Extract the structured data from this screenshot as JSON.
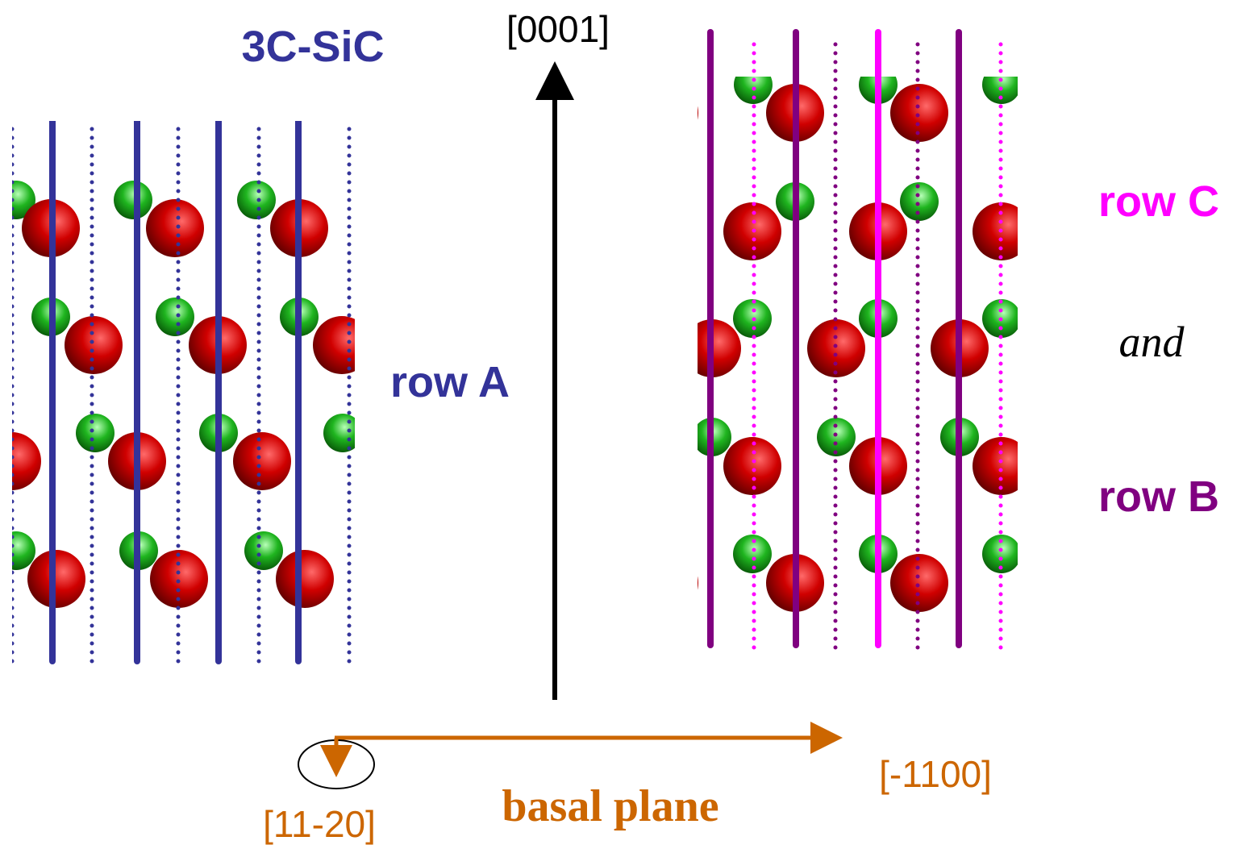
{
  "labels": {
    "title": "3C-SiC",
    "axis_up": "[0001]",
    "row_a": "row A",
    "row_c": "row C",
    "and": "and",
    "row_b": "row B",
    "axis_in": "[11-20]",
    "axis_right": "[-1100]",
    "plane": "basal plane"
  }
}
